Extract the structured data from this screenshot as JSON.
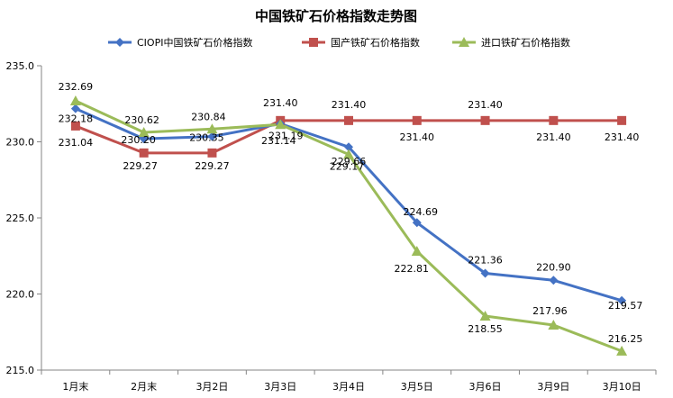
{
  "chart_data": {
    "type": "line",
    "title": "中国铁矿石价格指数走势图",
    "categories": [
      "1月末",
      "2月末",
      "3月2日",
      "3月3日",
      "3月4日",
      "3月5日",
      "3月6日",
      "3月9日",
      "3月10日"
    ],
    "ylim": [
      215.0,
      235.0
    ],
    "yticks": [
      "235.0",
      "230.0",
      "225.0",
      "220.0",
      "215.0"
    ],
    "legend_position": "top",
    "grid": false,
    "series": [
      {
        "name": "CIOPI中国铁矿石价格指数",
        "color": "#4472C4",
        "marker": "diamond",
        "values": [
          232.18,
          230.2,
          230.35,
          231.19,
          229.66,
          224.69,
          221.36,
          220.9,
          219.57
        ],
        "labels": [
          "232.18",
          "230.20",
          "230.35",
          "231.19",
          "229.66",
          "224.69",
          "221.36",
          "220.90",
          "219.57"
        ]
      },
      {
        "name": "国产铁矿石价格指数",
        "color": "#C0504D",
        "marker": "square",
        "values": [
          231.04,
          229.27,
          229.27,
          231.4,
          231.4,
          231.4,
          231.4,
          231.4,
          231.4
        ],
        "labels": [
          "231.04",
          "229.27",
          "229.27",
          "231.40",
          "231.40",
          "231.40",
          "231.40",
          "231.40",
          "231.40"
        ]
      },
      {
        "name": "进口铁矿石价格指数",
        "color": "#9BBB59",
        "marker": "triangle",
        "values": [
          232.69,
          230.62,
          230.84,
          231.14,
          229.17,
          222.81,
          218.55,
          217.96,
          216.25
        ],
        "labels": [
          "232.69",
          "230.62",
          "230.84",
          "231.14",
          "229.17",
          "222.81",
          "218.55",
          "217.96",
          "216.25"
        ]
      }
    ]
  }
}
